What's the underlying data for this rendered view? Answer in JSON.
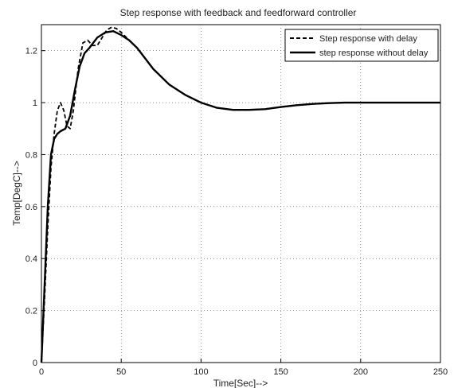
{
  "chart_data": {
    "type": "line",
    "title": "Step response with feedback and feedforward controller",
    "xlabel": "Time[Sec]-->",
    "ylabel": "Temp[DegC]-->",
    "xlim": [
      0,
      250
    ],
    "ylim": [
      0,
      1.3
    ],
    "xticks": [
      "0",
      "50",
      "100",
      "150",
      "200",
      "250"
    ],
    "yticks": [
      "0",
      "0.2",
      "0.4",
      "0.6",
      "0.8",
      "1",
      "1.2"
    ],
    "grid": true,
    "legend_position": "top-right",
    "series": [
      {
        "name": "Step response with delay",
        "style": "dashed",
        "color": "#000000",
        "x": [
          0,
          2,
          4,
          6,
          8,
          10,
          12,
          14,
          16,
          18,
          20,
          23,
          26,
          29,
          32,
          35,
          38,
          41,
          44,
          47,
          50,
          55,
          60,
          65,
          70,
          80,
          90,
          100,
          110,
          120,
          130,
          140,
          150,
          160,
          170,
          180,
          190,
          200,
          210,
          220,
          230,
          240,
          250
        ],
        "y": [
          0,
          0.25,
          0.52,
          0.75,
          0.88,
          0.97,
          1.0,
          0.97,
          0.91,
          0.9,
          0.97,
          1.13,
          1.23,
          1.24,
          1.22,
          1.22,
          1.25,
          1.28,
          1.29,
          1.285,
          1.27,
          1.24,
          1.21,
          1.17,
          1.13,
          1.07,
          1.03,
          1.0,
          0.98,
          0.972,
          0.972,
          0.975,
          0.983,
          0.99,
          0.995,
          0.998,
          1.0,
          1.0,
          1.0,
          1.0,
          1.0,
          1.0,
          1.0
        ]
      },
      {
        "name": "step response without delay",
        "style": "solid",
        "color": "#000000",
        "x": [
          0,
          2,
          4,
          6,
          8,
          10,
          12,
          15,
          18,
          21,
          24,
          27,
          30,
          35,
          40,
          45,
          50,
          55,
          60,
          65,
          70,
          80,
          90,
          100,
          110,
          120,
          130,
          140,
          150,
          160,
          170,
          180,
          190,
          200,
          210,
          220,
          230,
          240,
          250
        ],
        "y": [
          0,
          0.3,
          0.6,
          0.8,
          0.86,
          0.88,
          0.89,
          0.9,
          0.95,
          1.05,
          1.14,
          1.19,
          1.21,
          1.25,
          1.27,
          1.275,
          1.26,
          1.24,
          1.21,
          1.17,
          1.13,
          1.07,
          1.03,
          1.0,
          0.98,
          0.972,
          0.972,
          0.975,
          0.983,
          0.99,
          0.995,
          0.998,
          1.0,
          1.0,
          1.0,
          1.0,
          1.0,
          1.0,
          1.0
        ]
      }
    ]
  }
}
